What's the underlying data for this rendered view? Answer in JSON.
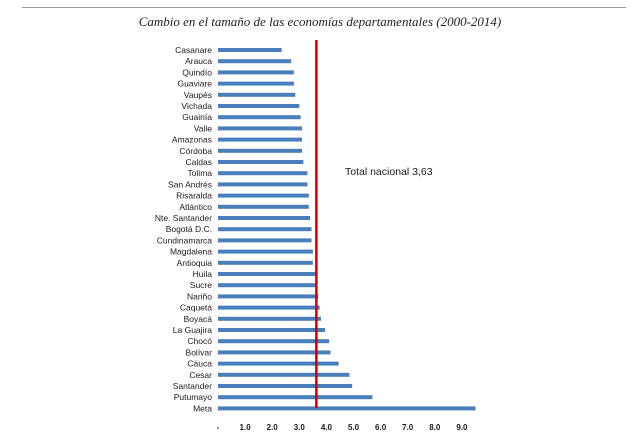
{
  "title": "Cambio en el tamaño de las economías departamentales (2000-2014)",
  "chart_data": {
    "type": "bar",
    "orientation": "horizontal",
    "title": "Cambio en el tamaño de las economías departamentales (2000-2014)",
    "xlabel": "",
    "ylabel": "",
    "xlim": [
      0,
      9.5
    ],
    "x_ticks": [
      "-",
      "1.0",
      "2.0",
      "3.0",
      "4.0",
      "5.0",
      "6.0",
      "7.0",
      "8.0",
      "9.0"
    ],
    "grid": false,
    "categories": [
      "Casanare",
      "Arauca",
      "Quindío",
      "Guaviare",
      "Vaupés",
      "Vichada",
      "Guainía",
      "Valle",
      "Amazonas",
      "Córdoba",
      "Caldas",
      "Tolima",
      "San Andrés",
      "Risaralda",
      "Atlántico",
      "Nte. Santander",
      "Bogotá D.C.",
      "Cundinamarca",
      "Magdalena",
      "Antioquia",
      "Huila",
      "Sucre",
      "Nariño",
      "Caquetá",
      "Boyacá",
      "La Guajira",
      "Chocó",
      "Bolívar",
      "Cáuca",
      "Cesar",
      "Santander",
      "Putumayo",
      "Meta"
    ],
    "values": [
      2.35,
      2.7,
      2.8,
      2.8,
      2.85,
      3.0,
      3.05,
      3.1,
      3.1,
      3.1,
      3.15,
      3.3,
      3.3,
      3.35,
      3.35,
      3.4,
      3.45,
      3.45,
      3.5,
      3.5,
      3.6,
      3.6,
      3.7,
      3.75,
      3.8,
      3.95,
      4.1,
      4.15,
      4.45,
      4.85,
      4.95,
      5.7,
      9.5
    ],
    "bar_color": "#4a7ebb",
    "reference_line": {
      "value": 3.63,
      "color": "#cc0000",
      "label": "Total nacional 3,63"
    }
  }
}
